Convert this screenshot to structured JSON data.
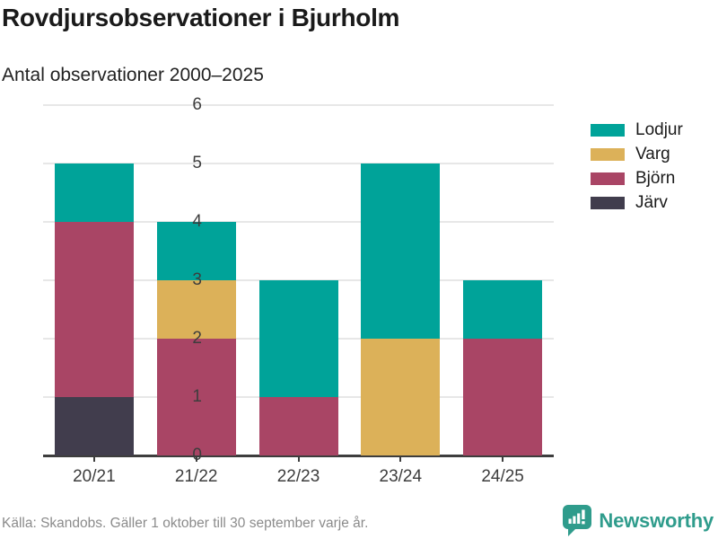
{
  "header": {
    "title": "Rovdjursobservationer i Bjurholm",
    "subtitle": "Antal observationer 2000–2025"
  },
  "chart_data": {
    "type": "bar",
    "stacked": true,
    "title": "Rovdjursobservationer i Bjurholm",
    "subtitle": "Antal observationer 2000–2025",
    "categories": [
      "20/21",
      "21/22",
      "22/23",
      "23/24",
      "24/25"
    ],
    "series": [
      {
        "name": "Järv",
        "color": "#413d4d",
        "values": [
          1,
          0,
          0,
          0,
          0
        ]
      },
      {
        "name": "Björn",
        "color": "#a94565",
        "values": [
          3,
          2,
          1,
          0,
          2
        ]
      },
      {
        "name": "Varg",
        "color": "#dcb159",
        "values": [
          0,
          1,
          0,
          2,
          0
        ]
      },
      {
        "name": "Lodjur",
        "color": "#00a399",
        "values": [
          1,
          1,
          2,
          3,
          1
        ]
      }
    ],
    "totals": [
      5,
      4,
      3,
      5,
      3
    ],
    "legend_order": [
      "Lodjur",
      "Varg",
      "Björn",
      "Järv"
    ],
    "legend_position": "right",
    "ylim": [
      0,
      6
    ],
    "yticks": [
      0,
      1,
      2,
      3,
      4,
      5,
      6
    ],
    "xlabel": "",
    "ylabel": "",
    "grid": true
  },
  "footer": {
    "source": "Källa: Skandobs. Gäller 1 oktober till 30 september varje år.",
    "brand": "Newsworthy"
  },
  "colors": {
    "lodjur": "#00a399",
    "varg": "#dcb159",
    "bjorn": "#a94565",
    "jarv": "#413d4d",
    "brand_teal": "#2f9c8c",
    "gridline": "#e7e7e7",
    "axis": "#3d3d3d",
    "source_text": "#8b8b8b"
  }
}
